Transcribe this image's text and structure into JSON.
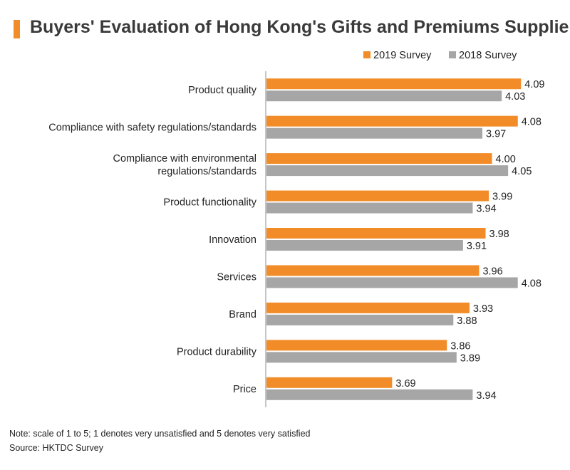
{
  "chart_data": {
    "type": "bar",
    "orientation": "horizontal",
    "title": "Buyers' Evaluation of Hong Kong's Gifts and Premiums Suppliers",
    "categories": [
      [
        "Product quality"
      ],
      [
        "Compliance with safety regulations/standards"
      ],
      [
        "Compliance with environmental",
        "regulations/standards"
      ],
      [
        "Product functionality"
      ],
      [
        "Innovation"
      ],
      [
        "Services"
      ],
      [
        "Brand"
      ],
      [
        "Product durability"
      ],
      [
        "Price"
      ]
    ],
    "series": [
      {
        "name": "2019 Survey",
        "color": "#f28c28",
        "values": [
          4.09,
          4.08,
          4.0,
          3.99,
          3.98,
          3.96,
          3.93,
          3.86,
          3.69
        ]
      },
      {
        "name": "2018 Survey",
        "color": "#a6a6a6",
        "values": [
          4.03,
          3.97,
          4.05,
          3.94,
          3.91,
          4.08,
          3.88,
          3.89,
          3.94
        ]
      }
    ],
    "xlim": [
      3.3,
      4.2
    ],
    "value_labels_decimals": 2,
    "legend_position": "top-right",
    "grid": false
  },
  "notes": {
    "note": "Note: scale of 1 to 5; 1 denotes very unsatisfied and 5 denotes very satisfied",
    "source": "Source: HKTDC Survey"
  },
  "colors": {
    "accent": "#f28c28",
    "secondary": "#a6a6a6"
  }
}
